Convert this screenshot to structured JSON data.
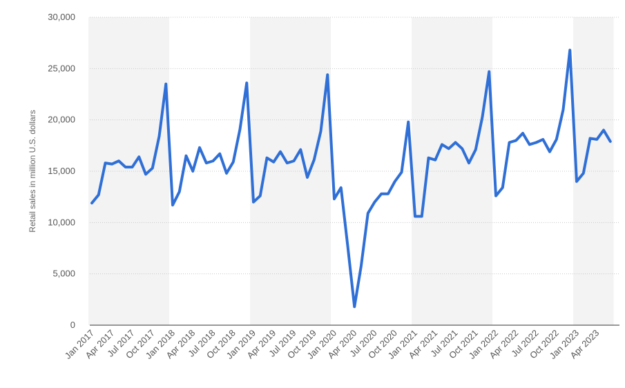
{
  "chart_data": {
    "type": "line",
    "title": "",
    "xlabel": "",
    "ylabel": "Retail sales in million U.S. dollars",
    "ylim": [
      0,
      30000
    ],
    "yticks": [
      0,
      5000,
      10000,
      15000,
      20000,
      25000,
      30000
    ],
    "ytick_labels": [
      "0",
      "5,000",
      "10,000",
      "15,000",
      "20,000",
      "25,000",
      "30,000"
    ],
    "xtick_labels": [
      "Jan 2017",
      "Apr 2017",
      "Jul 2017",
      "Oct 2017",
      "Jan 2018",
      "Apr 2018",
      "Jul 2018",
      "Oct 2018",
      "Jan 2019",
      "Apr 2019",
      "Jul 2019",
      "Oct 2019",
      "Jan 2020",
      "Apr 2020",
      "Jul 2020",
      "Oct 2020",
      "Jan 2021",
      "Apr 2021",
      "Jul 2021",
      "Oct 2021",
      "Jan 2022",
      "Apr 2022",
      "Jul 2022",
      "Oct 2022",
      "Jan 2023",
      "Apr 2023"
    ],
    "grid": "horizontal dotted",
    "line_color": "#2f6fd6",
    "band_color": "#f3f3f3",
    "x": [
      "Jan 2017",
      "Feb 2017",
      "Mar 2017",
      "Apr 2017",
      "May 2017",
      "Jun 2017",
      "Jul 2017",
      "Aug 2017",
      "Sep 2017",
      "Oct 2017",
      "Nov 2017",
      "Dec 2017",
      "Jan 2018",
      "Feb 2018",
      "Mar 2018",
      "Apr 2018",
      "May 2018",
      "Jun 2018",
      "Jul 2018",
      "Aug 2018",
      "Sep 2018",
      "Oct 2018",
      "Nov 2018",
      "Dec 2018",
      "Jan 2019",
      "Feb 2019",
      "Mar 2019",
      "Apr 2019",
      "May 2019",
      "Jun 2019",
      "Jul 2019",
      "Aug 2019",
      "Sep 2019",
      "Oct 2019",
      "Nov 2019",
      "Dec 2019",
      "Jan 2020",
      "Feb 2020",
      "Mar 2020",
      "Apr 2020",
      "May 2020",
      "Jun 2020",
      "Jul 2020",
      "Aug 2020",
      "Sep 2020",
      "Oct 2020",
      "Nov 2020",
      "Dec 2020",
      "Jan 2021",
      "Feb 2021",
      "Mar 2021",
      "Apr 2021",
      "May 2021",
      "Jun 2021",
      "Jul 2021",
      "Aug 2021",
      "Sep 2021",
      "Oct 2021",
      "Nov 2021",
      "Dec 2021",
      "Jan 2022",
      "Feb 2022",
      "Mar 2022",
      "Apr 2022",
      "May 2022",
      "Jun 2022",
      "Jul 2022",
      "Aug 2022",
      "Sep 2022",
      "Oct 2022",
      "Nov 2022",
      "Dec 2022",
      "Jan 2023",
      "Feb 2023",
      "Mar 2023",
      "Apr 2023",
      "May 2023",
      "Jun 2023"
    ],
    "series": [
      {
        "values": [
          11900,
          12700,
          15800,
          15700,
          16000,
          15400,
          15400,
          16400,
          14700,
          15300,
          18400,
          23500,
          11700,
          13000,
          16500,
          15000,
          17300,
          15800,
          16000,
          16700,
          14800,
          15900,
          19100,
          23600,
          12000,
          12600,
          16300,
          15900,
          16900,
          15800,
          16000,
          17100,
          14400,
          16100,
          18900,
          24400,
          12300,
          13400,
          7700,
          1800,
          5800,
          10900,
          12000,
          12800,
          12800,
          14000,
          14900,
          19800,
          10600,
          10600,
          16300,
          16100,
          17600,
          17200,
          17800,
          17200,
          15800,
          17100,
          20300,
          24700,
          12600,
          13400,
          17800,
          18000,
          18700,
          17600,
          17800,
          18100,
          16900,
          18100,
          21000,
          26800,
          14000,
          14800,
          18200,
          18100,
          19000,
          17900
        ]
      }
    ]
  }
}
